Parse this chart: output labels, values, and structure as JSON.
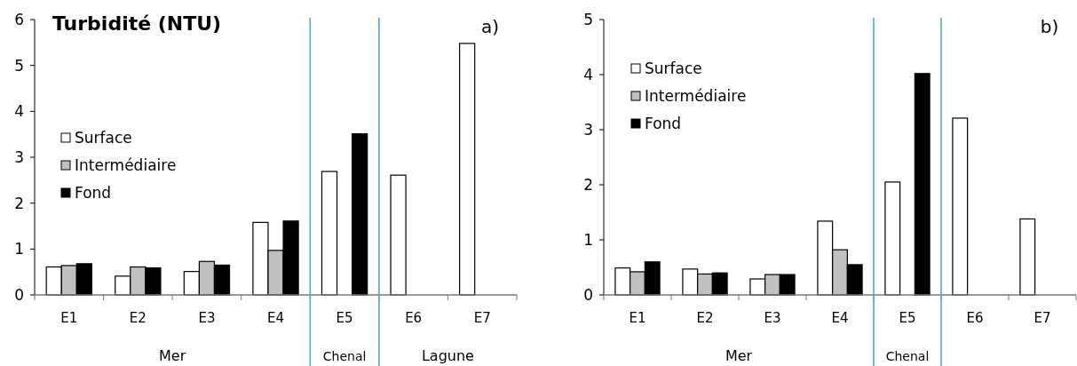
{
  "chart_data": [
    {
      "type": "bar",
      "title": "Turbidité (NTU)",
      "categories": [
        "E1",
        "E2",
        "E3",
        "E4",
        "E5",
        "E6",
        "E7"
      ],
      "series": [
        {
          "name": "Surface",
          "color": "#ffffff",
          "values": [
            0.61,
            0.41,
            0.51,
            1.58,
            2.69,
            2.61,
            5.48
          ]
        },
        {
          "name": "Intermédiaire",
          "color": "#c0c0c0",
          "values": [
            0.64,
            0.61,
            0.73,
            0.97,
            null,
            null,
            null
          ]
        },
        {
          "name": "Fond",
          "color": "#000000",
          "values": [
            0.68,
            0.59,
            0.65,
            1.61,
            3.51,
            null,
            null
          ]
        }
      ],
      "ylim": [
        0,
        6
      ],
      "yticks": [
        0,
        1,
        2,
        3,
        4,
        5,
        6
      ],
      "grid": false,
      "legend": "left",
      "annotations": [
        "Mer",
        "Chenal",
        "Lagune",
        "a)"
      ]
    },
    {
      "type": "bar",
      "categories": [
        "E1",
        "E2",
        "E3",
        "E4",
        "E5",
        "E6",
        "E7"
      ],
      "series": [
        {
          "name": "Surface",
          "color": "#ffffff",
          "values": [
            0.49,
            0.47,
            0.29,
            1.34,
            2.05,
            3.21,
            1.38
          ]
        },
        {
          "name": "Intermédiaire",
          "color": "#c0c0c0",
          "values": [
            0.42,
            0.38,
            0.37,
            0.82,
            null,
            null,
            null
          ]
        },
        {
          "name": "Fond",
          "color": "#000000",
          "values": [
            0.6,
            0.4,
            0.37,
            0.55,
            4.02,
            null,
            null
          ]
        }
      ],
      "ylim": [
        0,
        5
      ],
      "yticks": [
        0,
        1,
        2,
        3,
        4,
        5
      ],
      "grid": false,
      "legend": "top left",
      "annotations": [
        "Mer",
        "Chenal",
        "b)"
      ]
    }
  ]
}
